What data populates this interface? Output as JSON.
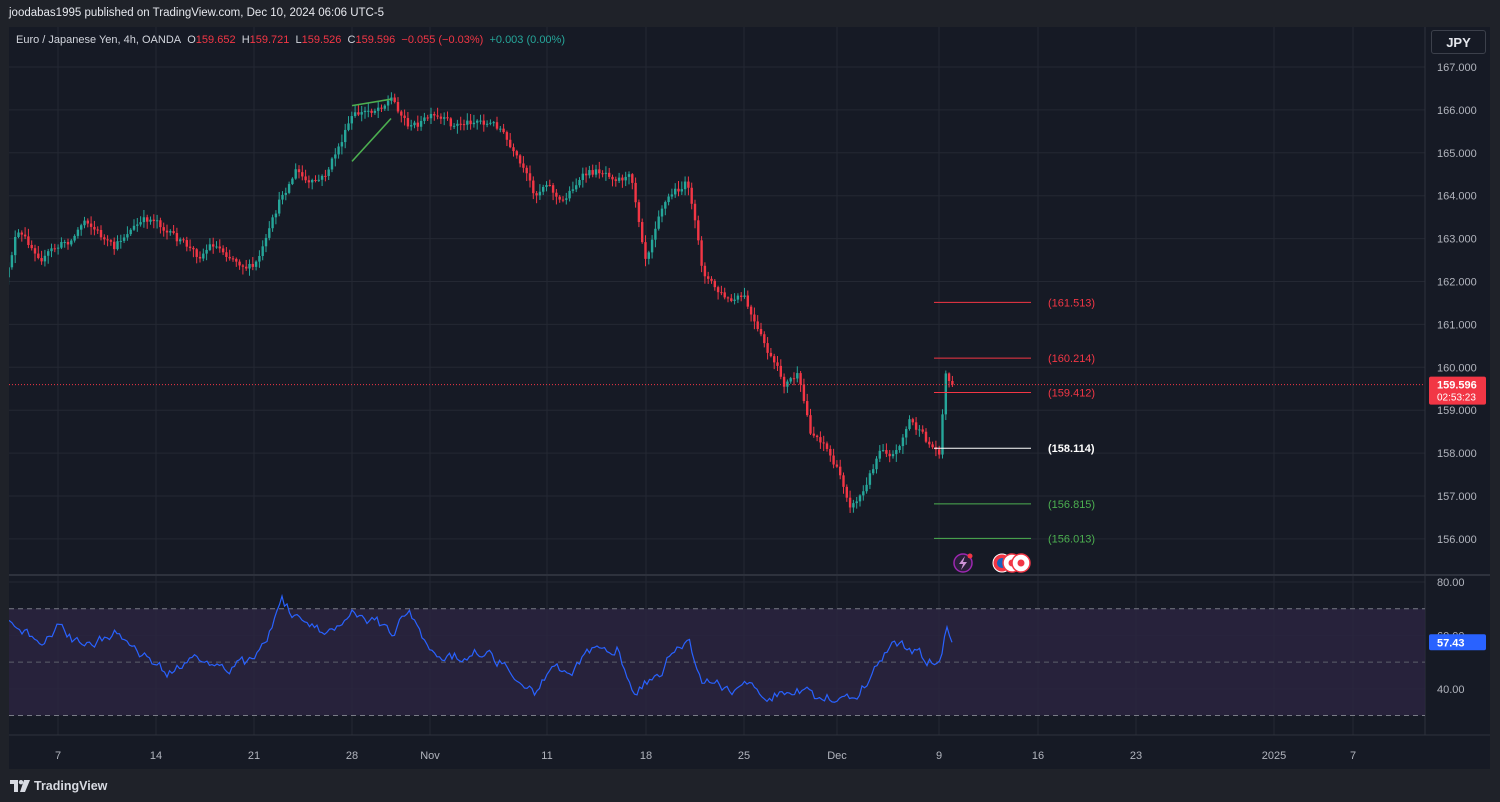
{
  "header": {
    "publisher_line": "joodabas1995 published on TradingView.com, Dec 10, 2024 06:06 UTC-5"
  },
  "legend": {
    "symbol": "Euro / Japanese Yen, 4h, OANDA",
    "o_label": "O",
    "o_value": "159.652",
    "h_label": "H",
    "h_value": "159.721",
    "l_label": "L",
    "l_value": "159.526",
    "c_label": "C",
    "c_value": "159.596",
    "change": "−0.055 (−0.03%)",
    "volume_change": "+0.003 (0.00%)"
  },
  "currency_button": "JPY",
  "price_axis": {
    "labels": [
      "167.000",
      "166.000",
      "165.000",
      "164.000",
      "163.000",
      "162.000",
      "161.000",
      "160.000",
      "159.000",
      "158.000",
      "157.000",
      "156.000"
    ],
    "current_price": "159.596",
    "countdown": "02:53:23"
  },
  "levels": [
    {
      "price": 161.513,
      "label": "(161.513)",
      "color": "#f23645"
    },
    {
      "price": 160.214,
      "label": "(160.214)",
      "color": "#f23645"
    },
    {
      "price": 159.412,
      "label": "(159.412)",
      "color": "#f23645"
    },
    {
      "price": 158.114,
      "label": "(158.114)",
      "color": "#ffffff"
    },
    {
      "price": 156.815,
      "label": "(156.815)",
      "color": "#4caf50"
    },
    {
      "price": 156.013,
      "label": "(156.013)",
      "color": "#4caf50"
    }
  ],
  "rsi": {
    "axis_labels": [
      "80.00",
      "60.00",
      "40.00"
    ],
    "current_value": "57.43"
  },
  "time_axis": {
    "labels": [
      "7",
      "14",
      "21",
      "28",
      "Nov",
      "11",
      "18",
      "25",
      "Dec",
      "9",
      "16",
      "23",
      "2025",
      "7"
    ]
  },
  "colors": {
    "up": "#26a69a",
    "down": "#f23645",
    "rsi_line": "#2962ff",
    "price_tag": "#f23645",
    "rsi_tag": "#2962ff"
  },
  "footer": {
    "brand": "TradingView"
  },
  "chart_data": {
    "type": "candlestick",
    "symbol": "Euro / Japanese Yen",
    "interval": "4h",
    "ylim": [
      155.6,
      167.3
    ],
    "price_anchors": [
      {
        "date": "Oct 3",
        "price": 161.6
      },
      {
        "date": "Oct 4",
        "price": 163.1
      },
      {
        "date": "Oct 6",
        "price": 162.6
      },
      {
        "date": "Oct 8",
        "price": 163.0
      },
      {
        "date": "Oct 9",
        "price": 163.5
      },
      {
        "date": "Oct 11",
        "price": 162.7
      },
      {
        "date": "Oct 12",
        "price": 163.2
      },
      {
        "date": "Oct 14",
        "price": 163.5
      },
      {
        "date": "Oct 15",
        "price": 163.1
      },
      {
        "date": "Oct 17",
        "price": 162.6
      },
      {
        "date": "Oct 18",
        "price": 162.9
      },
      {
        "date": "Oct 20",
        "price": 162.5
      },
      {
        "date": "Oct 21",
        "price": 162.3
      },
      {
        "date": "Oct 22",
        "price": 163.0
      },
      {
        "date": "Oct 23",
        "price": 164.0
      },
      {
        "date": "Oct 24",
        "price": 164.6
      },
      {
        "date": "Oct 25",
        "price": 164.2
      },
      {
        "date": "Oct 26",
        "price": 164.4
      },
      {
        "date": "Oct 28",
        "price": 165.8
      },
      {
        "date": "Oct 29",
        "price": 166.0
      },
      {
        "date": "Oct 30",
        "price": 166.3
      },
      {
        "date": "Oct 31",
        "price": 165.6
      },
      {
        "date": "Nov 1",
        "price": 165.8
      },
      {
        "date": "Nov 3",
        "price": 165.6
      },
      {
        "date": "Nov 5",
        "price": 165.8
      },
      {
        "date": "Nov 7",
        "price": 165.6
      },
      {
        "date": "Nov 8",
        "price": 165.0
      },
      {
        "date": "Nov 10",
        "price": 164.0
      },
      {
        "date": "Nov 11",
        "price": 164.4
      },
      {
        "date": "Nov 12",
        "price": 163.8
      },
      {
        "date": "Nov 13",
        "price": 164.3
      },
      {
        "date": "Nov 14",
        "price": 164.5
      },
      {
        "date": "Nov 15",
        "price": 164.6
      },
      {
        "date": "Nov 17",
        "price": 164.4
      },
      {
        "date": "Nov 18",
        "price": 162.6
      },
      {
        "date": "Nov 19",
        "price": 163.8
      },
      {
        "date": "Nov 20",
        "price": 164.1
      },
      {
        "date": "Nov 21",
        "price": 164.3
      },
      {
        "date": "Nov 22",
        "price": 162.3
      },
      {
        "date": "Nov 23",
        "price": 161.8
      },
      {
        "date": "Nov 24",
        "price": 161.5
      },
      {
        "date": "Nov 25",
        "price": 161.6
      },
      {
        "date": "Nov 26",
        "price": 160.8
      },
      {
        "date": "Nov 27",
        "price": 160.2
      },
      {
        "date": "Nov 28",
        "price": 159.6
      },
      {
        "date": "Nov 29",
        "price": 159.8
      },
      {
        "date": "Nov 30",
        "price": 158.5
      },
      {
        "date": "Dec 1",
        "price": 158.3
      },
      {
        "date": "Dec 2",
        "price": 157.6
      },
      {
        "date": "Dec 3",
        "price": 156.8
      },
      {
        "date": "Dec 4",
        "price": 157.2
      },
      {
        "date": "Dec 5",
        "price": 158.2
      },
      {
        "date": "Dec 6",
        "price": 158.0
      },
      {
        "date": "Dec 7",
        "price": 158.8
      },
      {
        "date": "Dec 8",
        "price": 158.3
      },
      {
        "date": "Dec 9",
        "price": 158.0
      },
      {
        "date": "Dec 9",
        "price": 159.9
      },
      {
        "date": "Dec 10",
        "price": 159.6
      }
    ],
    "rsi_range": [
      30,
      78
    ],
    "rsi_anchors": [
      {
        "date": "Oct 3",
        "rsi": 66
      },
      {
        "date": "Oct 4",
        "rsi": 62
      },
      {
        "date": "Oct 6",
        "rsi": 58
      },
      {
        "date": "Oct 7",
        "rsi": 63
      },
      {
        "date": "Oct 9",
        "rsi": 55
      },
      {
        "date": "Oct 11",
        "rsi": 62
      },
      {
        "date": "Oct 13",
        "rsi": 52
      },
      {
        "date": "Oct 15",
        "rsi": 46
      },
      {
        "date": "Oct 17",
        "rsi": 52
      },
      {
        "date": "Oct 19",
        "rsi": 47
      },
      {
        "date": "Oct 21",
        "rsi": 51
      },
      {
        "date": "Oct 22",
        "rsi": 60
      },
      {
        "date": "Oct 23",
        "rsi": 73
      },
      {
        "date": "Oct 24",
        "rsi": 66
      },
      {
        "date": "Oct 26",
        "rsi": 60
      },
      {
        "date": "Oct 28",
        "rsi": 70
      },
      {
        "date": "Oct 30",
        "rsi": 62
      },
      {
        "date": "Oct 31",
        "rsi": 68
      },
      {
        "date": "Nov 1",
        "rsi": 55
      },
      {
        "date": "Nov 3",
        "rsi": 52
      },
      {
        "date": "Nov 5",
        "rsi": 54
      },
      {
        "date": "Nov 7",
        "rsi": 50
      },
      {
        "date": "Nov 9",
        "rsi": 44
      },
      {
        "date": "Nov 10",
        "rsi": 36
      },
      {
        "date": "Nov 11",
        "rsi": 46
      },
      {
        "date": "Nov 13",
        "rsi": 48
      },
      {
        "date": "Nov 14",
        "rsi": 53
      },
      {
        "date": "Nov 16",
        "rsi": 56
      },
      {
        "date": "Nov 17",
        "rsi": 38
      },
      {
        "date": "Nov 19",
        "rsi": 46
      },
      {
        "date": "Nov 20",
        "rsi": 55
      },
      {
        "date": "Nov 21",
        "rsi": 58
      },
      {
        "date": "Nov 22",
        "rsi": 44
      },
      {
        "date": "Nov 24",
        "rsi": 39
      },
      {
        "date": "Nov 25",
        "rsi": 44
      },
      {
        "date": "Nov 26",
        "rsi": 40
      },
      {
        "date": "Nov 27",
        "rsi": 37
      },
      {
        "date": "Nov 28",
        "rsi": 39
      },
      {
        "date": "Nov 29",
        "rsi": 40
      },
      {
        "date": "Nov 30",
        "rsi": 38
      },
      {
        "date": "Dec 1",
        "rsi": 36
      },
      {
        "date": "Dec 2",
        "rsi": 38
      },
      {
        "date": "Dec 3",
        "rsi": 35
      },
      {
        "date": "Dec 4",
        "rsi": 42
      },
      {
        "date": "Dec 5",
        "rsi": 52
      },
      {
        "date": "Dec 6",
        "rsi": 58
      },
      {
        "date": "Dec 7",
        "rsi": 55
      },
      {
        "date": "Dec 8",
        "rsi": 52
      },
      {
        "date": "Dec 9",
        "rsi": 48
      },
      {
        "date": "Dec 9",
        "rsi": 62
      },
      {
        "date": "Dec 10",
        "rsi": 57.43
      }
    ],
    "wedge": {
      "upper": [
        {
          "date": "Oct 28",
          "price": 166.1
        },
        {
          "date": "Oct 30",
          "price": 166.25
        }
      ],
      "lower": [
        {
          "date": "Oct 28",
          "price": 164.8
        },
        {
          "date": "Oct 30",
          "price": 165.8
        }
      ]
    }
  }
}
